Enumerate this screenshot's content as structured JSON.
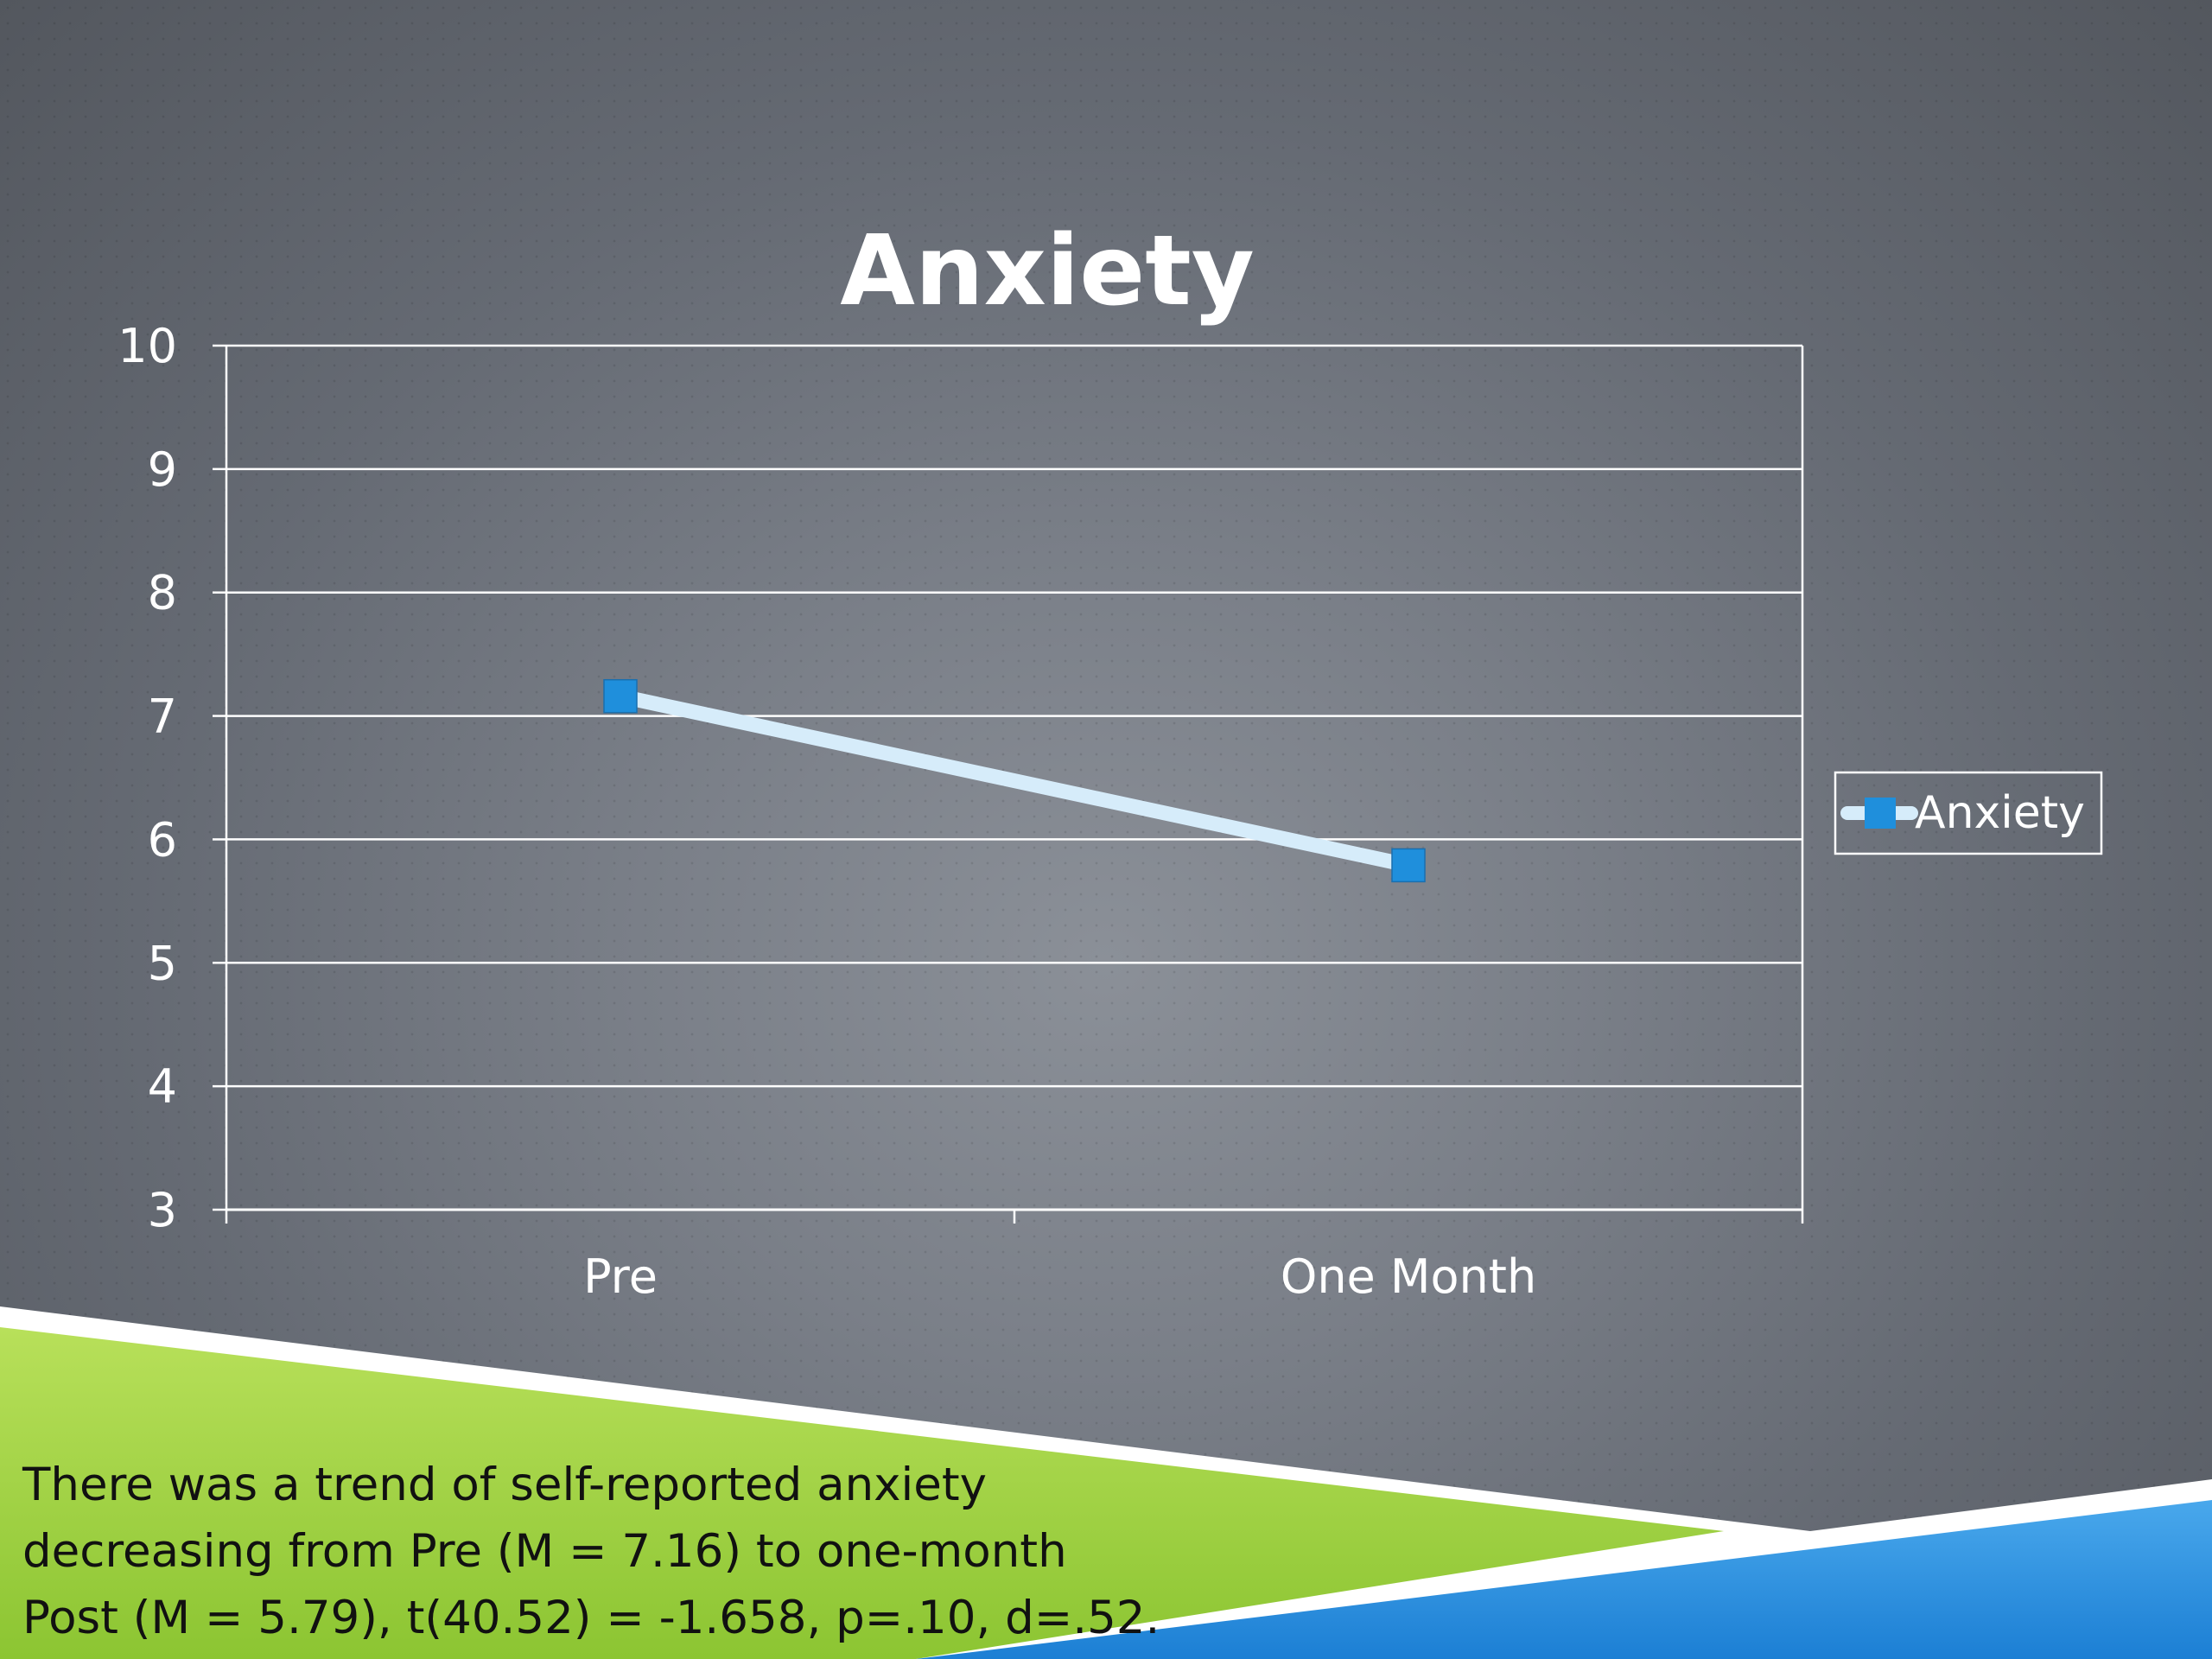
{
  "chart_data": {
    "type": "line",
    "title": "Anxiety",
    "categories": [
      "Pre",
      "One Month"
    ],
    "series": [
      {
        "name": "Anxiety",
        "values": [
          7.16,
          5.79
        ],
        "color": "#1f8fdc",
        "line_color": "#d6ecfa"
      }
    ],
    "ylim": [
      3,
      10
    ],
    "yticks": [
      3,
      4,
      5,
      6,
      7,
      8,
      9,
      10
    ],
    "grid": true,
    "legend": "right",
    "xlabel": "",
    "ylabel": ""
  },
  "caption": {
    "lines": [
      "There was a trend of self-reported anxiety",
      "decreasing from Pre (M  = 7.16) to one-month",
      "Post (M = 5.79), t(40.52) = -1.658, p=.10, d=.52."
    ]
  },
  "colors": {
    "green_band": "#9dd13a",
    "blue_band": "#2a8fe0",
    "text_white": "#ffffff"
  }
}
